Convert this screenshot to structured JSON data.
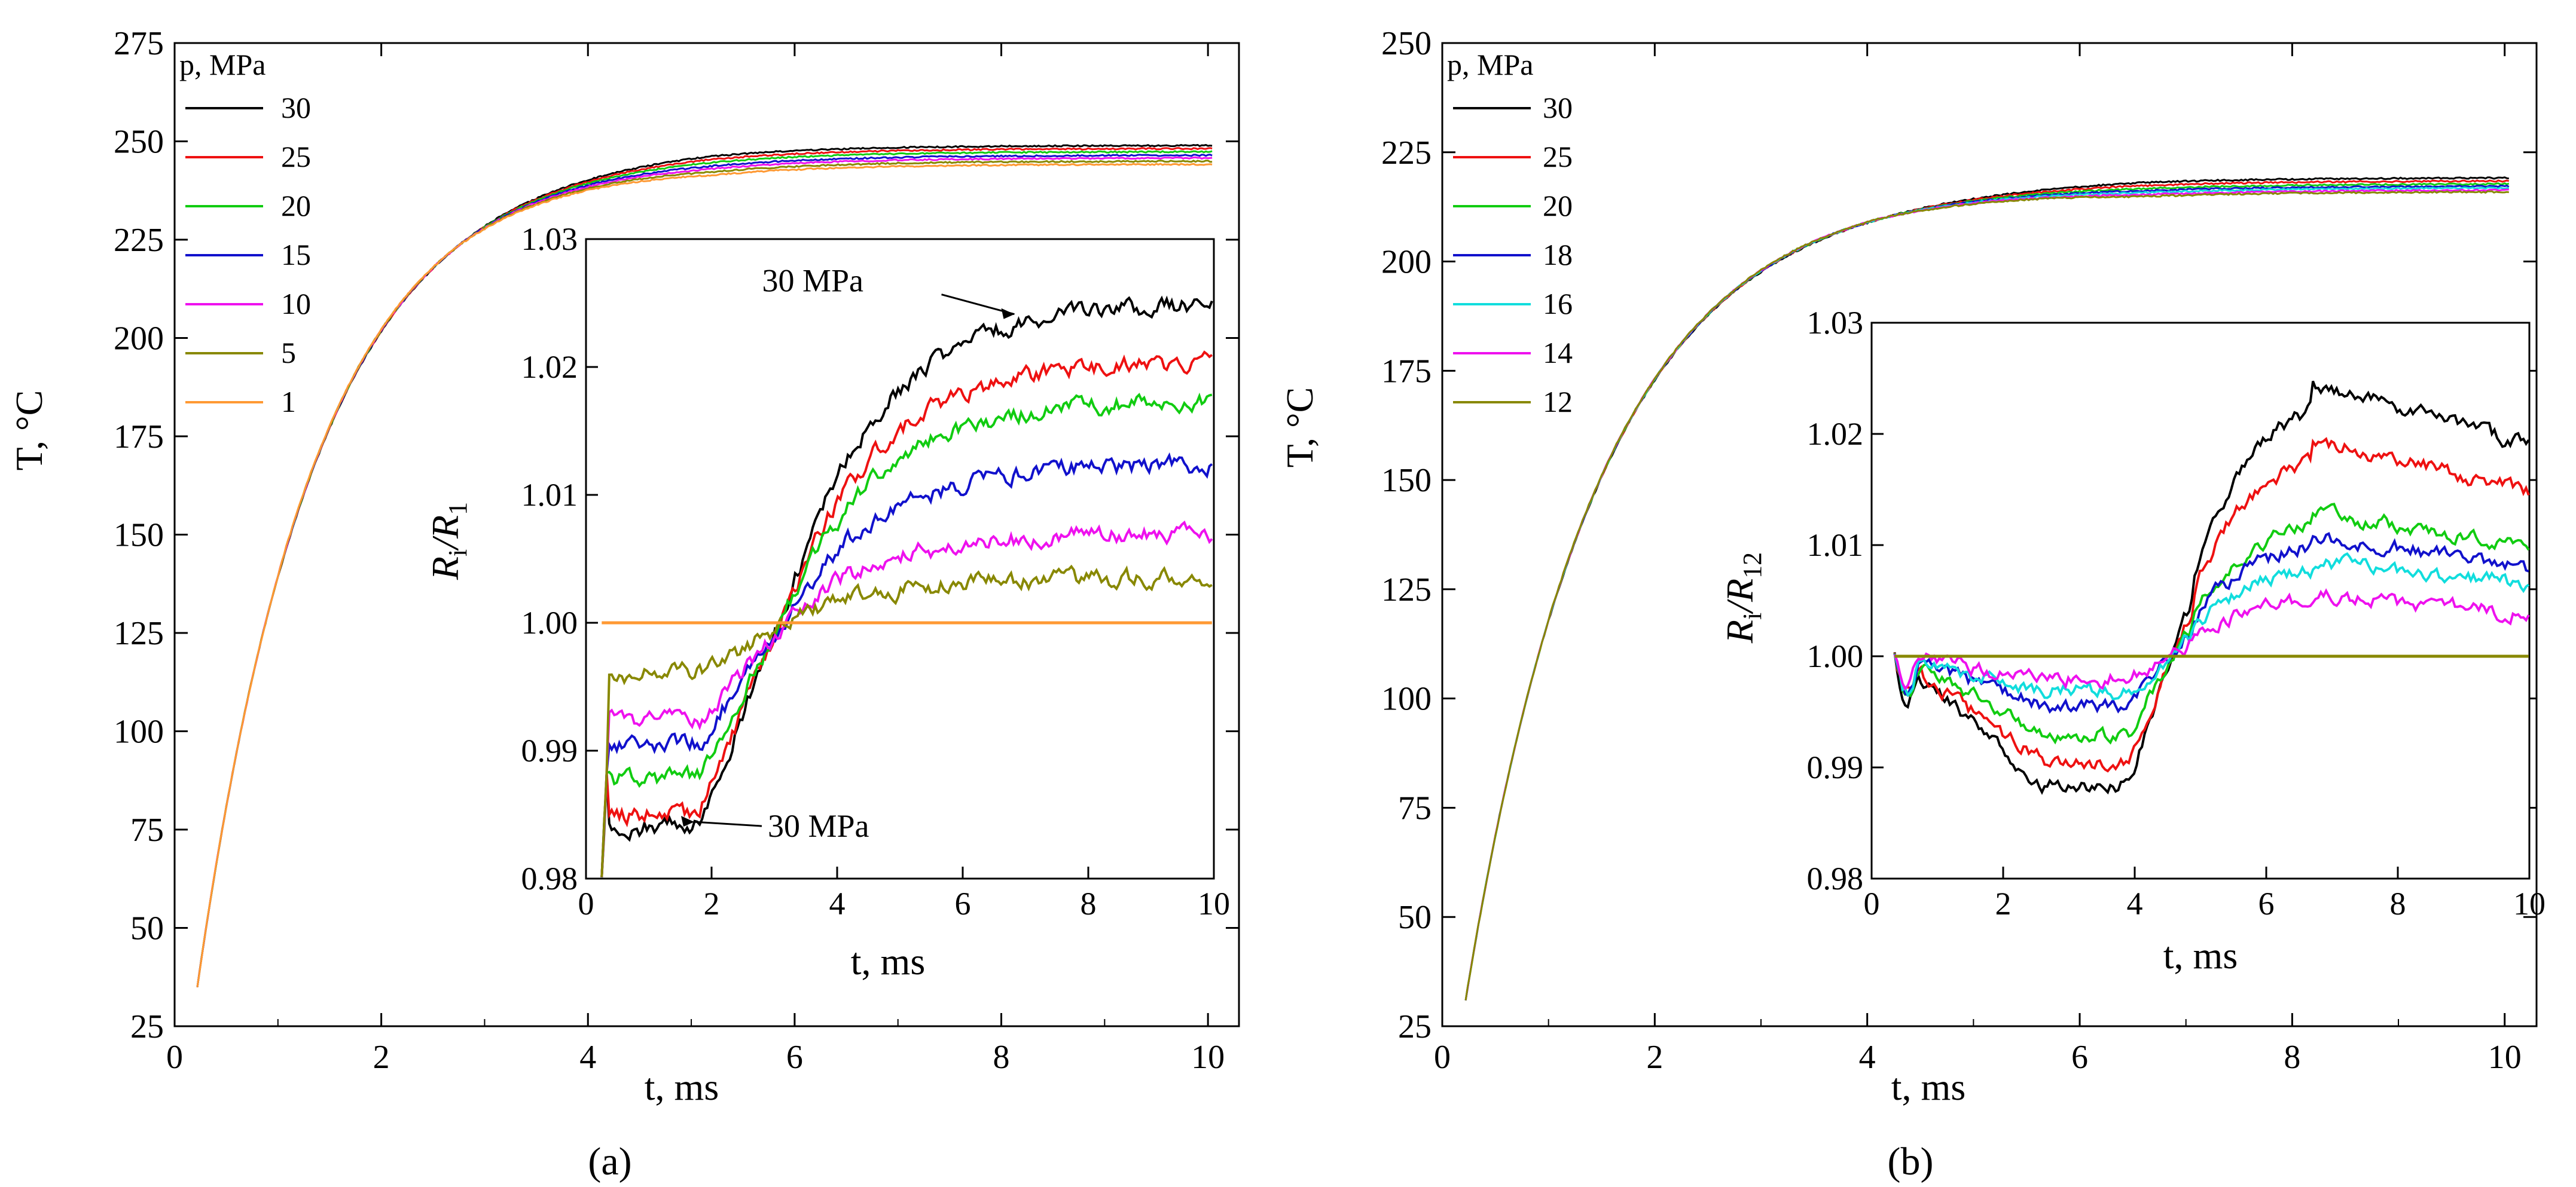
{
  "chart_data": [
    {
      "panel": "a",
      "caption": "(a)",
      "type": "line",
      "xlabel": "t, ms",
      "ylabel": "T, °C",
      "xlim": [
        0,
        10.3
      ],
      "ylim": [
        25,
        275
      ],
      "xticks": [
        0,
        2,
        4,
        6,
        8,
        10
      ],
      "yticks": [
        25,
        50,
        75,
        100,
        125,
        150,
        175,
        200,
        225,
        250,
        275
      ],
      "legend_title": "p, MPa",
      "series": [
        {
          "name": "30",
          "color": "#000000",
          "final": 249.0
        },
        {
          "name": "25",
          "color": "#ee1111",
          "final": 248.2
        },
        {
          "name": "20",
          "color": "#11cc11",
          "final": 247.4
        },
        {
          "name": "15",
          "color": "#1111cc",
          "final": 246.5
        },
        {
          "name": "10",
          "color": "#ee11ee",
          "final": 245.8
        },
        {
          "name": "5",
          "color": "#888800",
          "final": 245.0
        },
        {
          "name": "1",
          "color": "#ff9933",
          "final": 244.2
        }
      ],
      "curve": {
        "t0": 0.22,
        "T0": 35,
        "tau": 1.15,
        "Tmax": 247.0,
        "cross_t": 3.05
      },
      "inset": {
        "xlabel": "t, ms",
        "ylabel": "Ri/R1",
        "ylabel_base": "R",
        "ylabel_sub1": "i",
        "ylabel_den": "/R",
        "ylabel_sub2": "1",
        "xlim": [
          0,
          10
        ],
        "ylim": [
          0.98,
          1.03
        ],
        "xticks": [
          0,
          2,
          4,
          6,
          8,
          10
        ],
        "yticks": [
          "0.98",
          "0.99",
          "1.00",
          "1.01",
          "1.02",
          "1.03"
        ],
        "annotations": [
          {
            "text": "30 MPa",
            "t": 6.9,
            "v": 1.0245
          },
          {
            "text": "30 MPa",
            "t": 1.8,
            "v": 0.9842
          }
        ],
        "series": [
          {
            "name": "30",
            "early": 0.984,
            "late": 1.025
          },
          {
            "name": "25",
            "early": 0.985,
            "late": 1.0205
          },
          {
            "name": "20",
            "early": 0.9878,
            "late": 1.0175
          },
          {
            "name": "15",
            "early": 0.9905,
            "late": 1.0125
          },
          {
            "name": "10",
            "early": 0.9925,
            "late": 1.007
          },
          {
            "name": "5",
            "early": 0.996,
            "late": 1.0035
          },
          {
            "name": "1",
            "early": 1.0,
            "late": 1.0
          }
        ],
        "step_t": 2.0,
        "cross_t": 3.05
      }
    },
    {
      "panel": "b",
      "caption": "(b)",
      "type": "line",
      "xlabel": "t, ms",
      "ylabel": "T, °C",
      "xlim": [
        0,
        10.3
      ],
      "ylim": [
        25,
        250
      ],
      "xticks": [
        0,
        2,
        4,
        6,
        8,
        10
      ],
      "yticks": [
        25,
        50,
        75,
        100,
        125,
        150,
        175,
        200,
        225,
        250
      ],
      "legend_title": "p, MPa",
      "series": [
        {
          "name": "30",
          "color": "#000000",
          "final": 219.2
        },
        {
          "name": "25",
          "color": "#ee1111",
          "final": 218.5
        },
        {
          "name": "20",
          "color": "#11cc11",
          "final": 217.8
        },
        {
          "name": "18",
          "color": "#1111cc",
          "final": 217.3
        },
        {
          "name": "16",
          "color": "#11dddd",
          "final": 216.9
        },
        {
          "name": "14",
          "color": "#ee11ee",
          "final": 216.4
        },
        {
          "name": "12",
          "color": "#888800",
          "final": 216.0
        }
      ],
      "curve": {
        "t0": 0.22,
        "T0": 31,
        "tau": 1.25,
        "Tmax": 218.0,
        "cross_t": 4.5
      },
      "inset": {
        "xlabel": "t, ms",
        "ylabel": "Ri/R12",
        "ylabel_base": "R",
        "ylabel_sub1": "i",
        "ylabel_den": "/R",
        "ylabel_sub2": "12",
        "xlim": [
          0,
          10
        ],
        "ylim": [
          0.98,
          1.03
        ],
        "xticks": [
          0,
          2,
          4,
          6,
          8,
          10
        ],
        "yticks": [
          "0.98",
          "0.99",
          "1.00",
          "1.01",
          "1.02",
          "1.03"
        ],
        "annotations": [],
        "series": [
          {
            "name": "30",
            "early": 0.9885,
            "late": 1.0245,
            "end": 1.019
          },
          {
            "name": "25",
            "early": 0.9905,
            "late": 1.0195,
            "end": 1.0148
          },
          {
            "name": "20",
            "early": 0.993,
            "late": 1.013,
            "end": 1.0098
          },
          {
            "name": "18",
            "early": 0.9955,
            "late": 1.011,
            "end": 1.0078
          },
          {
            "name": "16",
            "early": 0.9968,
            "late": 1.0085,
            "end": 1.0065
          },
          {
            "name": "14",
            "early": 0.998,
            "late": 1.0055,
            "end": 1.0037
          },
          {
            "name": "12",
            "early": 1.0,
            "late": 1.0,
            "end": 1.0
          }
        ],
        "step_t": 4.0,
        "cross_t": 4.5
      }
    }
  ]
}
